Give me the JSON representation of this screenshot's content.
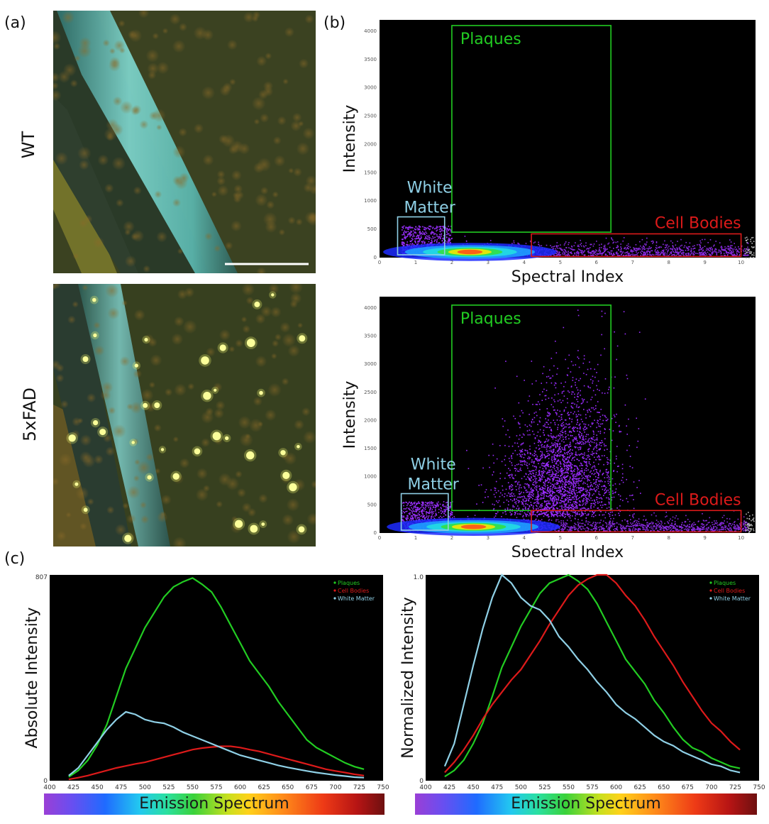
{
  "panels": {
    "a": "(a)",
    "b": "(b)",
    "c": "(c)"
  },
  "rows": [
    "WT",
    "5xFAD"
  ],
  "colors": {
    "plaques": "#22cc22",
    "cell_bodies": "#dd1a1a",
    "white_matter": "#8fd0e6"
  },
  "chart_data": [
    {
      "id": "scatter-wt",
      "type": "scatter",
      "title": "",
      "xlabel": "Spectral Index",
      "ylabel": "Intensity",
      "xlim": [
        0,
        10.4
      ],
      "ylim": [
        0,
        4200
      ],
      "xticks": [
        0,
        1,
        2,
        3,
        4,
        5,
        6,
        7,
        8,
        9,
        10
      ],
      "yticks": [
        0,
        500,
        1000,
        1500,
        2000,
        2500,
        3000,
        3500,
        4000
      ],
      "gates": [
        {
          "name": "Plaques",
          "key": "plaques",
          "x": [
            2.0,
            6.4
          ],
          "y": [
            450,
            4100
          ],
          "label_pos": "top-left"
        },
        {
          "name": "White\nMatter",
          "key": "white_matter",
          "x": [
            0.5,
            1.8
          ],
          "y": [
            50,
            720
          ],
          "label_pos": "above"
        },
        {
          "name": "Cell Bodies",
          "key": "cell_bodies",
          "x": [
            4.2,
            10.0
          ],
          "y": [
            20,
            420
          ],
          "label_pos": "above-right"
        }
      ],
      "density": {
        "core": [
          2.5,
          100
        ],
        "band_x": [
          0.6,
          10.2
        ],
        "band_y": [
          0,
          420
        ],
        "plume": null
      }
    },
    {
      "id": "scatter-5xfad",
      "type": "scatter",
      "title": "",
      "xlabel": "Spectral Index",
      "ylabel": "Intensity",
      "xlim": [
        0,
        10.4
      ],
      "ylim": [
        0,
        4200
      ],
      "xticks": [
        0,
        1,
        2,
        3,
        4,
        5,
        6,
        7,
        8,
        9,
        10
      ],
      "yticks": [
        0,
        500,
        1000,
        1500,
        2000,
        2500,
        3000,
        3500,
        4000
      ],
      "gates": [
        {
          "name": "Plaques",
          "key": "plaques",
          "x": [
            2.0,
            6.4
          ],
          "y": [
            400,
            4050
          ],
          "label_pos": "top-left"
        },
        {
          "name": "White\nMatter",
          "key": "white_matter",
          "x": [
            0.6,
            1.9
          ],
          "y": [
            50,
            700
          ],
          "label_pos": "above"
        },
        {
          "name": "Cell Bodies",
          "key": "cell_bodies",
          "x": [
            4.2,
            10.0
          ],
          "y": [
            20,
            400
          ],
          "label_pos": "above-right"
        }
      ],
      "density": {
        "core": [
          2.6,
          110
        ],
        "band_x": [
          0.6,
          10.2
        ],
        "band_y": [
          0,
          420
        ],
        "plume": {
          "center": [
            5.0,
            1500
          ],
          "spread": [
            1.1,
            1200
          ]
        }
      }
    },
    {
      "id": "spectrum-absolute",
      "type": "line",
      "xlabel": "",
      "ylabel": "Absolute Intensity",
      "xlim": [
        400,
        750
      ],
      "ylim": [
        0,
        807
      ],
      "xticks": [
        400,
        425,
        450,
        475,
        500,
        525,
        550,
        575,
        600,
        625,
        650,
        675,
        700,
        725,
        750
      ],
      "ytick_labels": [
        "0",
        "807"
      ],
      "legend": "top-right",
      "x": [
        420,
        430,
        440,
        450,
        460,
        470,
        480,
        490,
        500,
        510,
        520,
        530,
        540,
        550,
        560,
        570,
        580,
        590,
        600,
        610,
        620,
        630,
        640,
        650,
        660,
        670,
        680,
        690,
        700,
        710,
        720,
        730
      ],
      "series": [
        {
          "name": "Plaques",
          "key": "plaques",
          "values": [
            15,
            40,
            80,
            140,
            220,
            330,
            440,
            520,
            600,
            660,
            720,
            760,
            780,
            795,
            770,
            740,
            680,
            610,
            540,
            470,
            420,
            370,
            310,
            260,
            210,
            160,
            130,
            110,
            90,
            70,
            55,
            45
          ]
        },
        {
          "name": "Cell Bodies",
          "key": "cell_bodies",
          "values": [
            5,
            12,
            20,
            30,
            40,
            50,
            58,
            66,
            72,
            82,
            92,
            102,
            112,
            122,
            128,
            132,
            135,
            135,
            130,
            122,
            115,
            105,
            95,
            85,
            75,
            65,
            55,
            45,
            38,
            32,
            25,
            20
          ]
        },
        {
          "name": "White Matter",
          "key": "white_matter",
          "values": [
            20,
            50,
            100,
            150,
            200,
            240,
            270,
            260,
            240,
            230,
            225,
            210,
            190,
            175,
            160,
            145,
            130,
            115,
            100,
            90,
            80,
            70,
            60,
            52,
            45,
            38,
            32,
            27,
            22,
            18,
            14,
            12
          ]
        }
      ]
    },
    {
      "id": "spectrum-normalized",
      "type": "line",
      "xlabel": "",
      "ylabel": "Normalized Intensity",
      "xlim": [
        400,
        750
      ],
      "ylim": [
        0,
        1.0
      ],
      "xticks": [
        400,
        425,
        450,
        475,
        500,
        525,
        550,
        575,
        600,
        625,
        650,
        675,
        700,
        725,
        750
      ],
      "ytick_labels": [
        "0",
        "1.0"
      ],
      "legend": "top-right",
      "x": [
        420,
        430,
        440,
        450,
        460,
        470,
        480,
        490,
        500,
        510,
        520,
        530,
        540,
        550,
        560,
        570,
        580,
        590,
        600,
        610,
        620,
        630,
        640,
        650,
        660,
        670,
        680,
        690,
        700,
        710,
        720,
        730
      ],
      "series": [
        {
          "name": "Plaques",
          "key": "plaques",
          "values": [
            0.02,
            0.05,
            0.1,
            0.18,
            0.28,
            0.41,
            0.55,
            0.65,
            0.75,
            0.83,
            0.91,
            0.96,
            0.98,
            1.0,
            0.97,
            0.93,
            0.86,
            0.77,
            0.68,
            0.59,
            0.53,
            0.47,
            0.39,
            0.33,
            0.26,
            0.2,
            0.16,
            0.14,
            0.11,
            0.09,
            0.07,
            0.06
          ]
        },
        {
          "name": "Cell Bodies",
          "key": "cell_bodies",
          "values": [
            0.04,
            0.09,
            0.15,
            0.22,
            0.3,
            0.37,
            0.43,
            0.49,
            0.54,
            0.61,
            0.68,
            0.76,
            0.83,
            0.9,
            0.95,
            0.98,
            1.0,
            1.0,
            0.96,
            0.9,
            0.85,
            0.78,
            0.7,
            0.63,
            0.56,
            0.48,
            0.41,
            0.34,
            0.28,
            0.24,
            0.19,
            0.15
          ]
        },
        {
          "name": "White Matter",
          "key": "white_matter",
          "values": [
            0.07,
            0.18,
            0.37,
            0.56,
            0.74,
            0.89,
            1.0,
            0.96,
            0.89,
            0.85,
            0.83,
            0.78,
            0.7,
            0.65,
            0.59,
            0.54,
            0.48,
            0.43,
            0.37,
            0.33,
            0.3,
            0.26,
            0.22,
            0.19,
            0.17,
            0.14,
            0.12,
            0.1,
            0.08,
            0.07,
            0.05,
            0.04
          ]
        }
      ]
    }
  ],
  "spectrum_bar": {
    "label": "Emission Spectrum"
  }
}
